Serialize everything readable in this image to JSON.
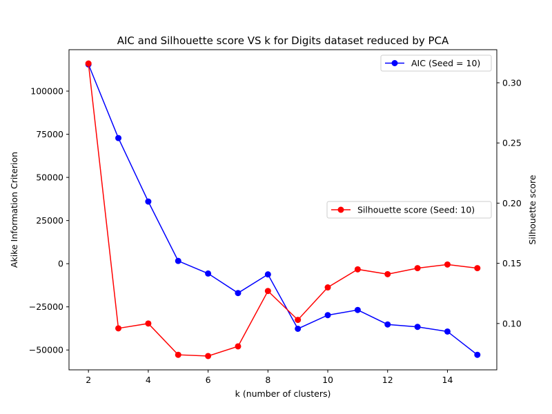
{
  "chart_data": {
    "type": "line",
    "title": "AIC and Silhouette score VS k for Digits dataset reduced by PCA",
    "xlabel": "k (number of clusters)",
    "ylabel_left": "Akike Information Criterion",
    "ylabel_right": "Silhouette score",
    "x": [
      2,
      3,
      4,
      5,
      6,
      7,
      8,
      9,
      10,
      11,
      12,
      13,
      14,
      15
    ],
    "xlim": [
      1.35,
      15.65
    ],
    "ylim_left": [
      -61500,
      124000
    ],
    "ylim_right": [
      0.0615,
      0.3275
    ],
    "xticks": [
      2,
      4,
      6,
      8,
      10,
      12,
      14
    ],
    "yticks_left": [
      -50000,
      -25000,
      0,
      25000,
      50000,
      75000,
      100000
    ],
    "yticks_right": [
      0.1,
      0.15,
      0.2,
      0.25,
      0.3
    ],
    "tick_labels": {
      "x": [
        "2",
        "4",
        "6",
        "8",
        "10",
        "12",
        "14"
      ],
      "left": [
        "−50000",
        "−25000",
        "0",
        "25000",
        "50000",
        "75000",
        "100000"
      ],
      "right": [
        "0.10",
        "0.15",
        "0.20",
        "0.25",
        "0.30"
      ]
    },
    "series": [
      {
        "name": "AIC (Seed = 10)",
        "axis": "left",
        "color": "#0000ff",
        "values": [
          115500,
          72800,
          36000,
          1600,
          -5700,
          -17000,
          -6200,
          -37700,
          -29800,
          -26800,
          -35200,
          -36600,
          -39300,
          -52800
        ]
      },
      {
        "name": "Silhouette score (Seed: 10)",
        "axis": "right",
        "color": "#ff0000",
        "values": [
          0.316,
          0.096,
          0.1,
          0.074,
          0.073,
          0.081,
          0.127,
          0.103,
          0.13,
          0.145,
          0.141,
          0.146,
          0.149,
          0.146
        ]
      }
    ],
    "legends": [
      {
        "position": "upper-right",
        "series": 0
      },
      {
        "position": "center-right",
        "series": 1
      }
    ],
    "grid": false
  }
}
